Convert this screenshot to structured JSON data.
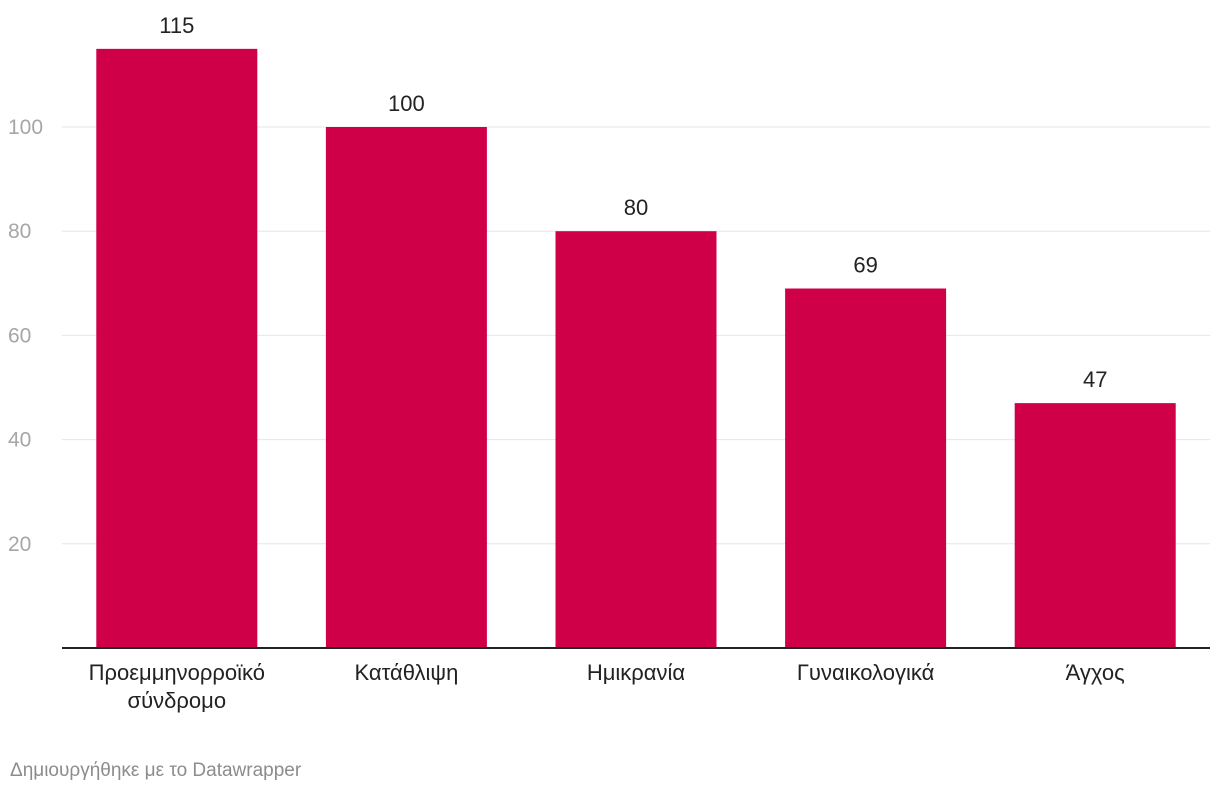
{
  "chart_data": {
    "type": "bar",
    "categories": [
      [
        "Προεμμηνορροϊκό",
        "σύνδρομο"
      ],
      [
        "Κατάθλιψη"
      ],
      [
        "Ημικρανία"
      ],
      [
        "Γυναικολογικά"
      ],
      [
        "Άγχος"
      ]
    ],
    "values": [
      115,
      100,
      80,
      69,
      47
    ],
    "value_labels": [
      "115",
      "100",
      "80",
      "69",
      "47"
    ],
    "yticks": [
      20,
      40,
      60,
      80,
      100
    ],
    "ytick_labels": [
      "20",
      "40",
      "60",
      "80",
      "100"
    ],
    "ylim": [
      0,
      120
    ],
    "grid": true,
    "title": "",
    "xlabel": "",
    "ylabel": "",
    "bar_color": "#cf0048",
    "grid_color": "#e6e6e6",
    "axis_color": "#222222"
  },
  "footer": {
    "credit": "Δημιουργήθηκε με το Datawrapper"
  }
}
